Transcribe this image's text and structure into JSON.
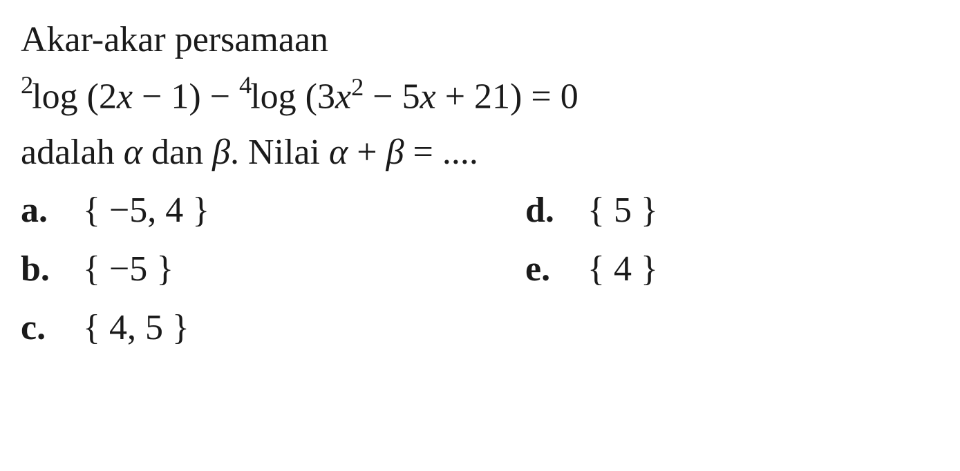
{
  "question": {
    "line1": "Akar-akar persamaan",
    "equation": {
      "pre1": "2",
      "log1": "log (2",
      "var_x1": "x",
      "minus1": " − 1) − ",
      "pre2": "4",
      "log2": "log (3",
      "var_x2": "x",
      "sq": "2",
      "minus2": " − 5",
      "var_x3": "x",
      "plus": " + 21) = 0"
    },
    "line3_a": "adalah ",
    "alpha": "α",
    "line3_b": " dan ",
    "beta": "β",
    "line3_c": ". Nilai  ",
    "alpha2": "α",
    "line3_d": " + ",
    "beta2": "β",
    "line3_e": " = ...."
  },
  "answers": {
    "a": {
      "label": "a.",
      "value": "{ −5, 4 }"
    },
    "b": {
      "label": "b.",
      "value": "{ −5 }"
    },
    "c": {
      "label": "c.",
      "value": "{ 4, 5 }"
    },
    "d": {
      "label": "d.",
      "value": "{ 5 }"
    },
    "e": {
      "label": "e.",
      "value": "{ 4 }"
    }
  },
  "style": {
    "text_color": "#1a1a1a",
    "background_color": "#ffffff",
    "font_family": "Times New Roman",
    "font_size_pt": 39
  }
}
